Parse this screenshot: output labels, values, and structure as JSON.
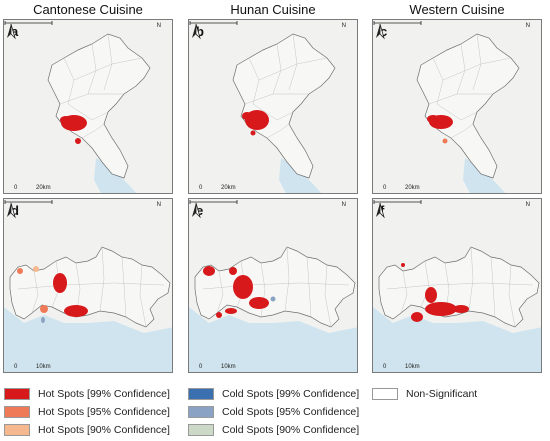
{
  "columns": [
    "Cantonese Cuisine",
    "Hunan Cuisine",
    "Western Cuisine"
  ],
  "panels": [
    {
      "label": "a",
      "region": "city",
      "scale": "20km"
    },
    {
      "label": "b",
      "region": "city",
      "scale": "20km"
    },
    {
      "label": "c",
      "region": "city",
      "scale": "20km"
    },
    {
      "label": "d",
      "region": "coastal",
      "scale": "10km"
    },
    {
      "label": "e",
      "region": "coastal",
      "scale": "10km"
    },
    {
      "label": "f",
      "region": "coastal",
      "scale": "10km"
    }
  ],
  "map_common": {
    "north": "N",
    "scale_zero": "0"
  },
  "legend": [
    {
      "label": "Hot Spots [99% Confidence]",
      "color": "#d7191c"
    },
    {
      "label": "Hot Spots [95% Confidence]",
      "color": "#ef7a58"
    },
    {
      "label": "Hot Spots [90% Confidence]",
      "color": "#f6b98f"
    },
    {
      "label": "Cold Spots [99% Confidence]",
      "color": "#3a6fb0"
    },
    {
      "label": "Cold Spots [95% Confidence]",
      "color": "#8aa3c4"
    },
    {
      "label": "Cold Spots [90% Confidence]",
      "color": "#cbd9c6"
    },
    {
      "label": "Non-Significant",
      "color": "#ffffff"
    }
  ],
  "colors": {
    "water": "#cfe4ef",
    "land": "#f7f7f5",
    "boundary": "#b9b9b9",
    "outline": "#6e6e6e"
  }
}
